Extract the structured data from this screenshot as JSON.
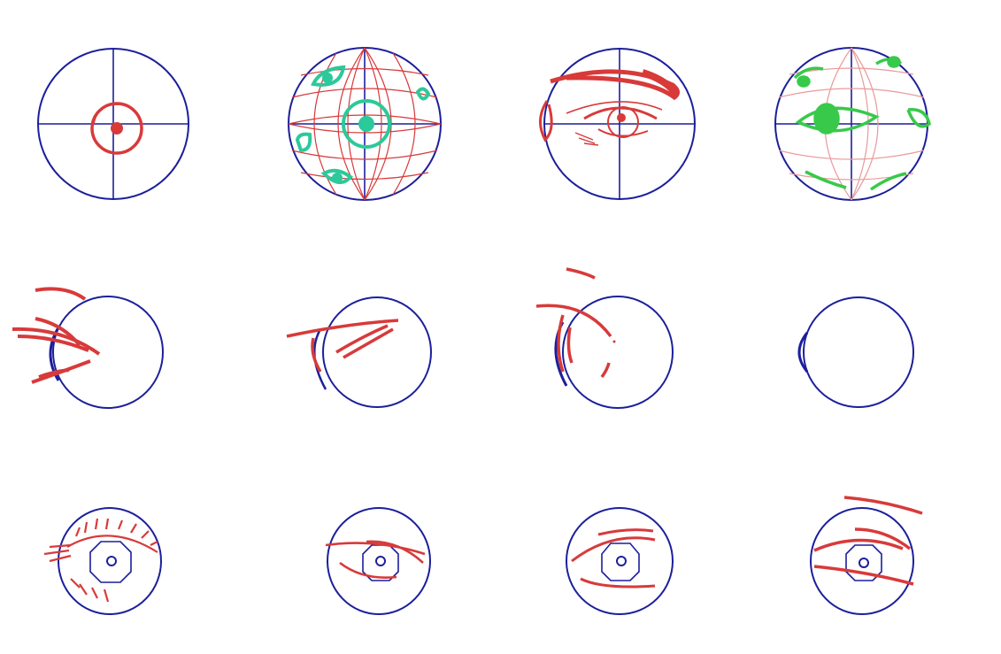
{
  "colors": {
    "outline": "#1c1f9a",
    "sketch": "#d83a3a",
    "guide": "#e99a9a",
    "feature_teal": "#2cc99a",
    "feature_green": "#38c94a",
    "background": "#ffffff"
  },
  "rows": [
    {
      "name": "sphere-construction",
      "panels": [
        "crosshair-iris",
        "wrapped-grid-eyes",
        "eye-with-brow",
        "side-grid-eye"
      ]
    },
    {
      "name": "profile-eyeball",
      "panels": [
        "lashes-left",
        "lid-strokes",
        "brow-lid-profile",
        "bare-sphere"
      ]
    },
    {
      "name": "front-eyeball",
      "panels": [
        "open-eye-lashes",
        "narrow-lid",
        "angled-lid",
        "brow-squint"
      ]
    }
  ]
}
